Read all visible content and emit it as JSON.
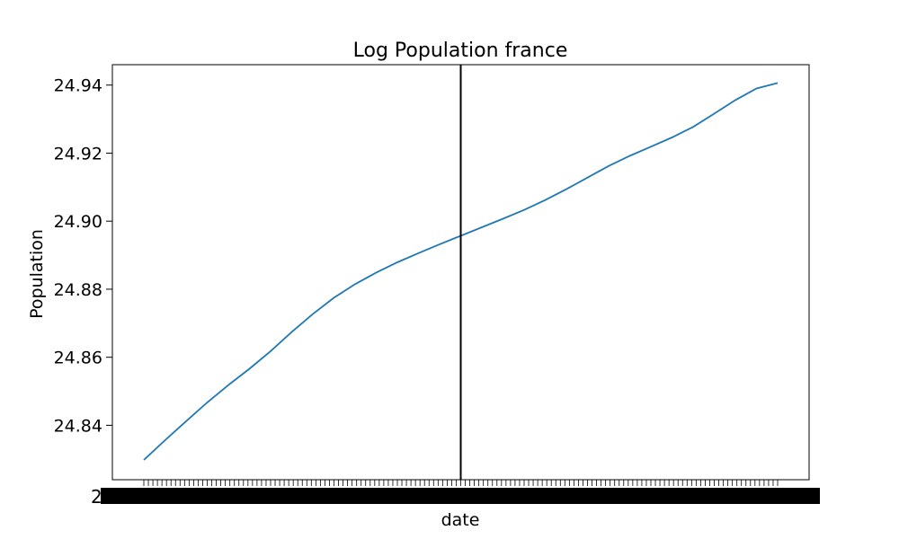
{
  "chart_data": {
    "type": "line",
    "title": "Log Population france",
    "xlabel": "date",
    "ylabel": "Population",
    "ylim": [
      24.824,
      24.946
    ],
    "yticks": [
      24.84,
      24.86,
      24.88,
      24.9,
      24.92,
      24.94
    ],
    "ytick_labels": [
      "24.84",
      "24.86",
      "24.88",
      "24.90",
      "24.92",
      "24.94"
    ],
    "grid": false,
    "legend": "none",
    "x_tick_labels_overlapping": true,
    "vertical_marker_index": 70,
    "series": [
      {
        "color": "#1f77b4",
        "values": [
          24.8298,
          24.8356,
          24.8412,
          24.8467,
          24.8518,
          24.8566,
          24.8618,
          24.8674,
          24.8727,
          24.8775,
          24.8815,
          24.8849,
          24.8879,
          24.8906,
          24.8932,
          24.8957,
          24.8982,
          24.9007,
          24.9033,
          24.9062,
          24.9094,
          24.9128,
          24.9162,
          24.9192,
          24.9219,
          24.9246,
          24.9277,
          24.9316,
          24.9356,
          24.939,
          24.9406
        ]
      }
    ],
    "vertical_line_color": "#000000"
  }
}
